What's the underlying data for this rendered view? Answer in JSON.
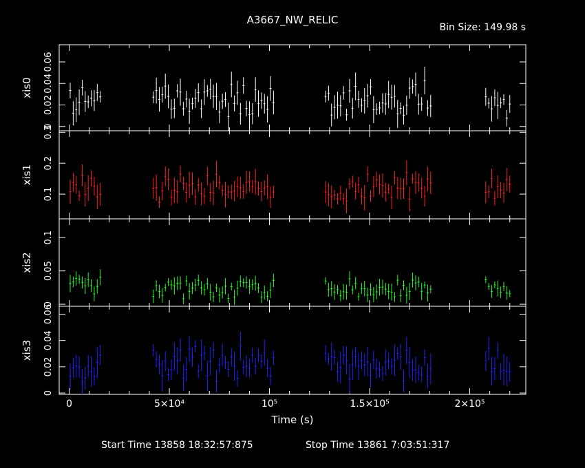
{
  "chart_data": {
    "type": "line",
    "title": "A3667_NW_RELIC",
    "bin_size_label": "Bin Size:  149.98  s",
    "xlabel": "Time (s)",
    "xlim": [
      -5000,
      228000
    ],
    "x_ticks": [
      {
        "v": 0,
        "label": "0"
      },
      {
        "v": 50000,
        "label": "5×10⁴"
      },
      {
        "v": 100000,
        "label": "10⁵"
      },
      {
        "v": 150000,
        "label": "1.5×10⁵"
      },
      {
        "v": 200000,
        "label": "2×10⁵"
      }
    ],
    "x_minor_step": 10000,
    "segments": [
      [
        500,
        16000
      ],
      [
        42000,
        102000
      ],
      [
        128000,
        181000
      ],
      [
        208000,
        221000
      ]
    ],
    "start_time_label": "Start Time 13858 18:32:57:875",
    "stop_time_label": "Stop Time 13861  7:03:51:317",
    "panels": [
      {
        "name": "xis0",
        "ylabel": "xis0",
        "color": "#ffffff",
        "ylim": [
          -0.004,
          0.076
        ],
        "yticks": [
          {
            "v": 0,
            "label": "0"
          },
          {
            "v": 0.02,
            "label": "0.02"
          },
          {
            "v": 0.04,
            "label": "0.04"
          },
          {
            "v": 0.06,
            "label": "0.06"
          }
        ],
        "mean": 0.025,
        "spread": 0.012,
        "seed": 11
      },
      {
        "name": "xis1",
        "ylabel": "xis1",
        "color": "#ff2020",
        "ylim": [
          0.02,
          0.305
        ],
        "yticks": [
          {
            "v": 0.1,
            "label": "0.1"
          },
          {
            "v": 0.2,
            "label": "0.2"
          },
          {
            "v": 0.3,
            "label": "0.3"
          }
        ],
        "mean": 0.12,
        "spread": 0.04,
        "seed": 23
      },
      {
        "name": "xis2",
        "ylabel": "xis2",
        "color": "#20ff20",
        "ylim": [
          -0.003,
          0.128
        ],
        "yticks": [
          {
            "v": 0,
            "label": "0"
          },
          {
            "v": 0.05,
            "label": "0.05"
          },
          {
            "v": 0.1,
            "label": "0.1"
          }
        ],
        "mean": 0.025,
        "spread": 0.012,
        "seed": 37
      },
      {
        "name": "xis3",
        "ylabel": "xis3",
        "color": "#2020ff",
        "ylim": [
          -0.001,
          0.066
        ],
        "yticks": [
          {
            "v": 0,
            "label": "0"
          },
          {
            "v": 0.02,
            "label": "0.02"
          },
          {
            "v": 0.04,
            "label": "0.04"
          },
          {
            "v": 0.06,
            "label": "0.06"
          }
        ],
        "mean": 0.022,
        "spread": 0.011,
        "seed": 53
      }
    ]
  }
}
